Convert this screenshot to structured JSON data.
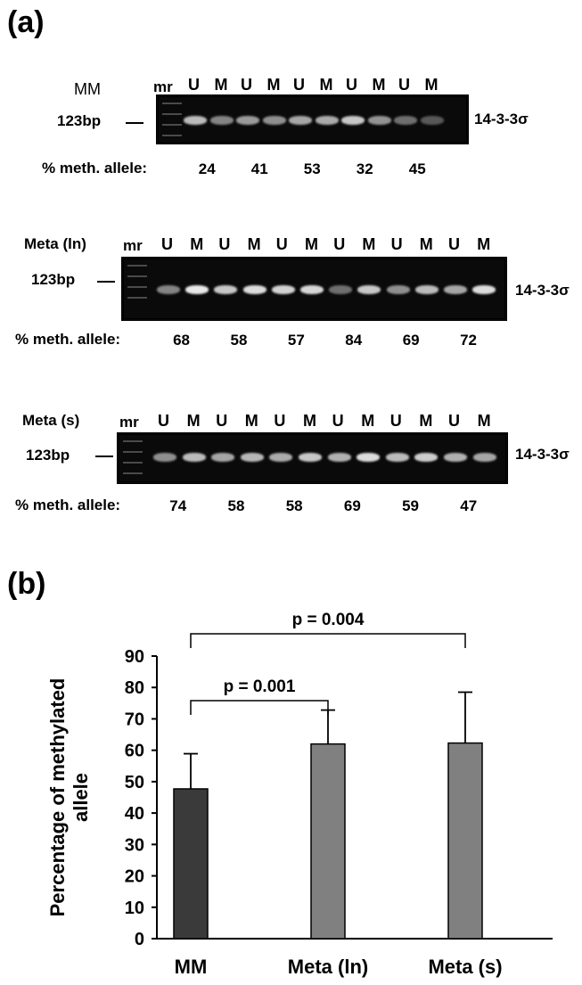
{
  "panel_a": {
    "label": "(a)",
    "gels": [
      {
        "group": "MM",
        "marker_label": "mr",
        "lanes": [
          "U",
          "M",
          "U",
          "M",
          "U",
          "M",
          "U",
          "M",
          "U",
          "M"
        ],
        "size_label": "123bp",
        "gene_label": "14-3-3σ",
        "meth_label": "% meth. allele:",
        "percentages": [
          "24",
          "41",
          "53",
          "32",
          "45"
        ],
        "band_intensity": [
          0.8,
          0.55,
          0.65,
          0.6,
          0.7,
          0.72,
          0.85,
          0.62,
          0.45,
          0.35
        ]
      },
      {
        "group": "Meta (ln)",
        "marker_label": "mr",
        "lanes": [
          "U",
          "M",
          "U",
          "M",
          "U",
          "M",
          "U",
          "M",
          "U",
          "M",
          "U",
          "M"
        ],
        "size_label": "123bp",
        "gene_label": "14-3-3σ",
        "meth_label": "% meth. allele:",
        "percentages": [
          "68",
          "58",
          "57",
          "84",
          "69",
          "72"
        ],
        "band_intensity": [
          0.55,
          1.0,
          0.85,
          0.95,
          0.9,
          0.92,
          0.45,
          0.85,
          0.6,
          0.8,
          0.7,
          0.95
        ]
      },
      {
        "group": "Meta (s)",
        "marker_label": "mr",
        "lanes": [
          "U",
          "M",
          "U",
          "M",
          "U",
          "M",
          "U",
          "M",
          "U",
          "M",
          "U",
          "M"
        ],
        "size_label": "123bp",
        "gene_label": "14-3-3σ",
        "meth_label": "% meth. allele:",
        "percentages": [
          "74",
          "58",
          "58",
          "69",
          "59",
          "47"
        ],
        "band_intensity": [
          0.6,
          0.8,
          0.7,
          0.78,
          0.72,
          0.85,
          0.75,
          0.95,
          0.8,
          0.88,
          0.75,
          0.7
        ]
      }
    ]
  },
  "panel_b": {
    "label": "(b)"
  },
  "chart_data": {
    "type": "bar",
    "categories": [
      "MM",
      "Meta (ln)",
      "Meta (s)"
    ],
    "values": [
      47.7,
      62.0,
      62.3
    ],
    "errors": [
      11.2,
      10.8,
      16.2
    ],
    "ylabel": "Percentage of methylated allele",
    "ylim": [
      0,
      90
    ],
    "yticks": [
      0,
      10,
      20,
      30,
      40,
      50,
      60,
      70,
      80,
      90
    ],
    "bar_colors": [
      "#3a3a3a",
      "#808080",
      "#808080"
    ],
    "annotations": [
      {
        "text": "p = 0.001",
        "from": "MM",
        "to": "Meta (ln)"
      },
      {
        "text": "p = 0.004",
        "from": "MM",
        "to": "Meta (s)"
      }
    ]
  }
}
